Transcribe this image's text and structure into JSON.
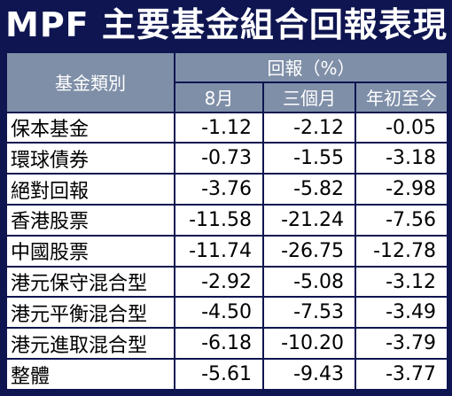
{
  "title": "MPF 主要基金組合回報表現",
  "header": {
    "category": "基金類別",
    "returns": "回報（%）",
    "periods": [
      "8月",
      "三個月",
      "年初至今"
    ]
  },
  "rows": [
    {
      "name": "保本基金",
      "values": [
        "-1.12",
        "-2.12",
        "-0.05"
      ]
    },
    {
      "name": "環球債券",
      "values": [
        "-0.73",
        "-1.55",
        "-3.18"
      ]
    },
    {
      "name": "絕對回報",
      "values": [
        "-3.76",
        "-5.82",
        "-2.98"
      ]
    },
    {
      "name": "香港股票",
      "values": [
        "-11.58",
        "-21.24",
        "-7.56"
      ]
    },
    {
      "name": "中國股票",
      "values": [
        "-11.74",
        "-26.75",
        "-12.78"
      ]
    },
    {
      "name": "港元保守混合型",
      "values": [
        "-2.92",
        "-5.08",
        "-3.12"
      ]
    },
    {
      "name": "港元平衡混合型",
      "values": [
        "-4.50",
        "-7.53",
        "-3.49"
      ]
    },
    {
      "name": "港元進取混合型",
      "values": [
        "-6.18",
        "-10.20",
        "-3.79"
      ]
    },
    {
      "name": "整體",
      "values": [
        "-5.61",
        "-9.43",
        "-3.77"
      ]
    }
  ],
  "colors": {
    "navy": "#0e1550",
    "header": "#7f8fa8"
  }
}
